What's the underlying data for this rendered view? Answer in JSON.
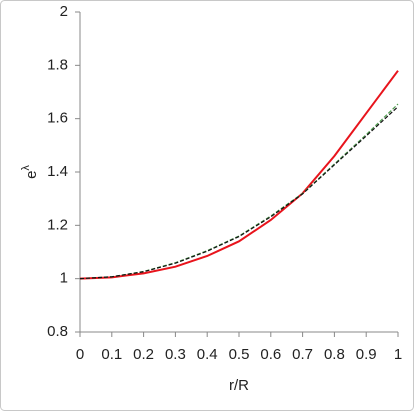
{
  "chart_data": {
    "type": "line",
    "x_label": "r/R",
    "y_label": "e",
    "y_label_superscript": "λ",
    "x": [
      0,
      0.1,
      0.2,
      0.3,
      0.4,
      0.5,
      0.6,
      0.7,
      0.8,
      0.9,
      1
    ],
    "series": [
      {
        "color": "#e8141c",
        "style": "solid",
        "values": [
          1,
          1.005,
          1.02,
          1.045,
          1.085,
          1.14,
          1.22,
          1.32,
          1.46,
          1.62,
          1.78
        ]
      },
      {
        "color": "#4c9a4c",
        "style": "dashed",
        "values": [
          1,
          1.007,
          1.027,
          1.06,
          1.105,
          1.16,
          1.235,
          1.32,
          1.43,
          1.54,
          1.655
        ]
      },
      {
        "color": "#111111",
        "style": "dashed",
        "values": [
          1,
          1.007,
          1.026,
          1.058,
          1.103,
          1.158,
          1.232,
          1.318,
          1.427,
          1.535,
          1.645
        ]
      }
    ],
    "xlim": [
      0,
      1
    ],
    "xticks": [
      0,
      0.1,
      0.2,
      0.3,
      0.4,
      0.5,
      0.6,
      0.7,
      0.8,
      0.9,
      1
    ],
    "ylim": [
      0.8,
      2
    ],
    "yticks": [
      0.8,
      1,
      1.2,
      1.4,
      1.6,
      1.8,
      2
    ],
    "grid": false
  }
}
